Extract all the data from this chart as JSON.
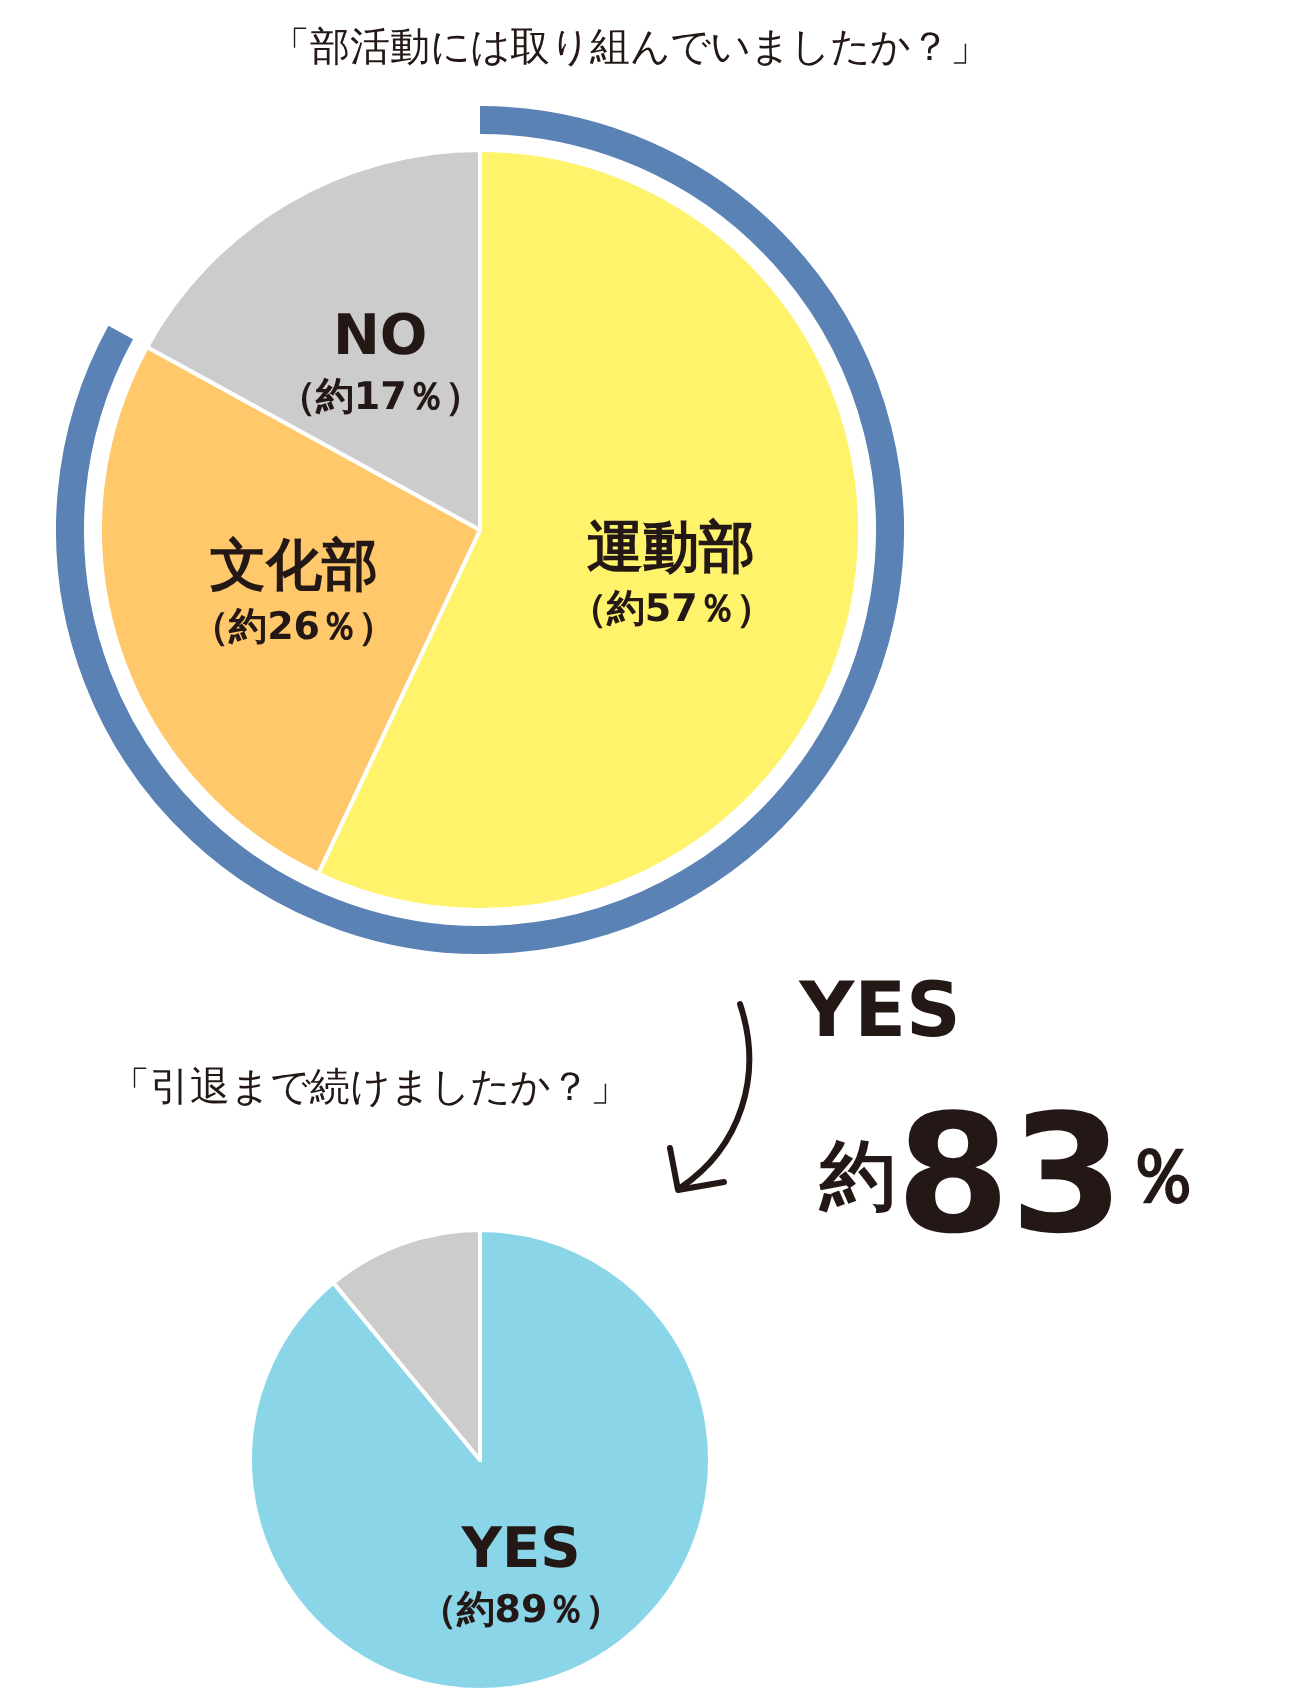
{
  "chart_data": [
    {
      "type": "pie",
      "title": "「部活動には取り組んでいましたか？」",
      "categories": [
        "運動部",
        "文化部",
        "NO"
      ],
      "values": [
        57,
        26,
        17
      ],
      "colors": [
        "#fff36b",
        "#ffc86b",
        "#cccccc"
      ],
      "value_labels": [
        "（約57％）",
        "（約26％）",
        "（約17％）"
      ]
    },
    {
      "type": "pie",
      "title": "「引退まで続けましたか？」",
      "annotations": [
        "YES",
        "約83％"
      ],
      "categories": [
        "YES",
        null
      ],
      "values": [
        89,
        11
      ],
      "colors": [
        "#8ad6e8",
        "#cccccc"
      ],
      "value_labels": [
        "（約89％）",
        null
      ]
    }
  ]
}
